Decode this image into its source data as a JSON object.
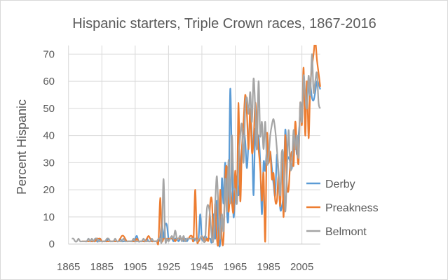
{
  "chart_data": {
    "type": "line",
    "title": "Hispanic starters, Triple Crown races, 1867-2016",
    "xlabel": "",
    "ylabel": "Percent Hispanic",
    "x_start": 1867,
    "x_end": 2016,
    "xlim": [
      1865,
      2016
    ],
    "ylim": [
      0,
      70
    ],
    "x_ticks": [
      1865,
      1885,
      1905,
      1925,
      1945,
      1965,
      1985,
      2005
    ],
    "y_ticks": [
      0,
      10,
      20,
      30,
      40,
      50,
      60,
      70
    ],
    "grid": true,
    "smoothed": true,
    "legend_position": "right",
    "series": [
      {
        "name": "Derby",
        "color": "#5B9BD5",
        "values": [
          null,
          null,
          null,
          null,
          null,
          null,
          null,
          null,
          1,
          1,
          2,
          1,
          1,
          1,
          2,
          1,
          1,
          2,
          1,
          1,
          1,
          1,
          2,
          1,
          1,
          1,
          1,
          1,
          1,
          2,
          1,
          1,
          1,
          1,
          1,
          1,
          1,
          1,
          2,
          3,
          1,
          1,
          1,
          1,
          1,
          2,
          1,
          1,
          1,
          1,
          1,
          1,
          1,
          2,
          8,
          2,
          7,
          7,
          2,
          2,
          2,
          1,
          2,
          2,
          1,
          2,
          2,
          1,
          2,
          1,
          2,
          2,
          2,
          1,
          2,
          2,
          2,
          11,
          2,
          2,
          3,
          2,
          2,
          2,
          1,
          11,
          2,
          16,
          2,
          1,
          24,
          15,
          30,
          12,
          12,
          57,
          30,
          10,
          20,
          25,
          18,
          28,
          35,
          42,
          38,
          28,
          38,
          47,
          40,
          18,
          42,
          35,
          40,
          30,
          11,
          30,
          27,
          35,
          30,
          34,
          28,
          22,
          18,
          33,
          24,
          13,
          14,
          20,
          42,
          32,
          32,
          30,
          28,
          38,
          40,
          33,
          40,
          47,
          50,
          57,
          55,
          52,
          57,
          59,
          54,
          53,
          56,
          60,
          59,
          57
        ]
      },
      {
        "name": "Preakness",
        "color": "#ED7D31",
        "values": [
          null,
          null,
          null,
          null,
          null,
          null,
          1,
          1,
          1,
          1,
          1,
          1,
          1,
          1,
          1,
          2,
          2,
          2,
          1,
          1,
          1,
          1,
          1,
          1,
          1,
          1,
          1,
          1,
          1,
          2,
          3,
          3,
          2,
          1,
          1,
          1,
          1,
          1,
          1,
          2,
          1,
          1,
          1,
          1,
          1,
          2,
          3,
          2,
          1,
          1,
          1,
          1,
          1,
          17,
          2,
          2,
          2,
          2,
          2,
          2,
          2,
          2,
          1,
          2,
          2,
          2,
          2,
          2,
          1,
          2,
          2,
          3,
          3,
          2,
          20,
          2,
          1,
          2,
          3,
          2,
          1,
          2,
          2,
          15,
          16,
          2,
          15,
          2,
          1,
          20,
          2,
          2,
          24,
          28,
          12,
          20,
          15,
          12,
          27,
          17,
          52,
          16,
          35,
          45,
          55,
          48,
          35,
          50,
          34,
          38,
          52,
          44,
          35,
          28,
          16,
          26,
          1,
          40,
          30,
          34,
          24,
          26,
          16,
          16,
          25,
          14,
          34,
          10,
          40,
          22,
          20,
          30,
          34,
          29,
          45,
          36,
          30,
          52,
          44,
          65,
          40,
          60,
          39,
          58,
          65,
          70,
          75,
          68,
          63,
          58
        ]
      },
      {
        "name": "Belmont",
        "color": "#A5A5A5",
        "values": [
          2,
          2,
          1,
          1,
          2,
          1,
          1,
          1,
          1,
          1,
          2,
          1,
          2,
          1,
          2,
          2,
          1,
          1,
          1,
          1,
          1,
          2,
          2,
          1,
          1,
          1,
          2,
          1,
          1,
          1,
          1,
          2,
          1,
          1,
          1,
          1,
          1,
          2,
          1,
          1,
          1,
          1,
          1,
          2,
          1,
          1,
          1,
          1,
          2,
          1,
          1,
          1,
          2,
          2,
          2,
          24,
          2,
          2,
          1,
          2,
          3,
          2,
          5,
          2,
          2,
          3,
          1,
          3,
          1,
          2,
          2,
          2,
          2,
          2,
          2,
          1,
          2,
          2,
          3,
          1,
          2,
          13,
          14,
          10,
          2,
          2,
          15,
          25,
          12,
          2,
          11,
          5,
          24,
          12,
          31,
          15,
          40,
          22,
          20,
          15,
          30,
          40,
          44,
          30,
          50,
          54,
          48,
          56,
          45,
          61,
          50,
          35,
          60,
          40,
          45,
          35,
          45,
          30,
          32,
          40,
          44,
          46,
          42,
          35,
          27,
          18,
          34,
          30,
          12,
          26,
          42,
          28,
          30,
          42,
          35,
          40,
          32,
          52,
          45,
          62,
          55,
          50,
          62,
          55,
          70,
          56,
          60,
          63,
          52,
          50
        ]
      }
    ]
  }
}
